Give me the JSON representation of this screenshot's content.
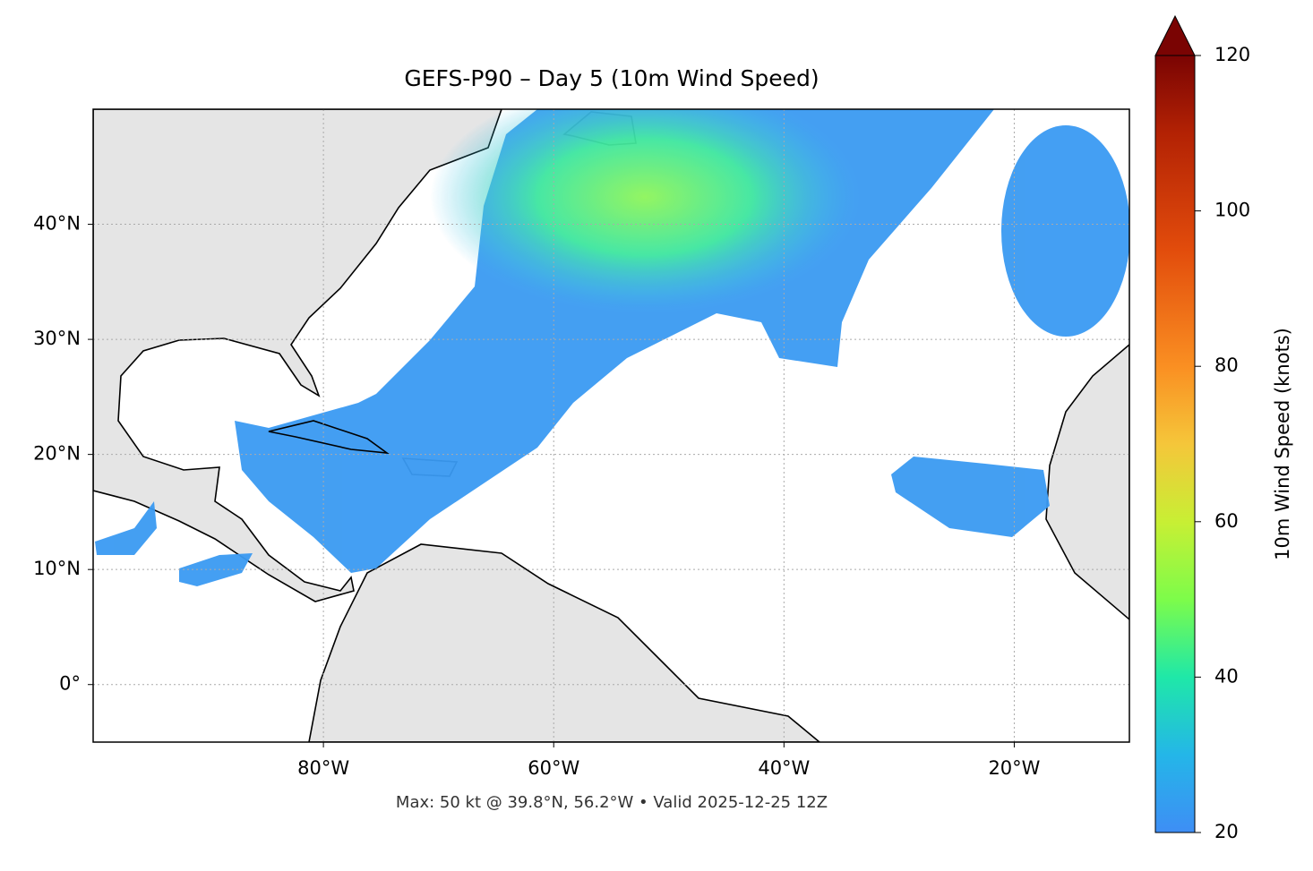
{
  "chart_data": {
    "type": "map",
    "title": "GEFS-P90 – Day 5 (10m Wind Speed)",
    "footer": "Max: 50 kt @ 39.8°N, 56.2°W • Valid 2025-12-25 12Z",
    "xlim": [
      -100,
      -10
    ],
    "ylim": [
      -5,
      50
    ],
    "xticks": [
      {
        "value": -80,
        "label": "80°W"
      },
      {
        "value": -60,
        "label": "60°W"
      },
      {
        "value": -40,
        "label": "40°W"
      },
      {
        "value": -20,
        "label": "20°W"
      }
    ],
    "yticks": [
      {
        "value": 0,
        "label": "0°"
      },
      {
        "value": 10,
        "label": "10°N"
      },
      {
        "value": 20,
        "label": "20°N"
      },
      {
        "value": 30,
        "label": "30°N"
      },
      {
        "value": 40,
        "label": "40°N"
      }
    ],
    "grid": true,
    "colorbar": {
      "label": "10m Wind Speed (knots)",
      "lim": [
        20,
        120
      ],
      "ticks": [
        20,
        40,
        60,
        80,
        100,
        120
      ]
    }
  }
}
